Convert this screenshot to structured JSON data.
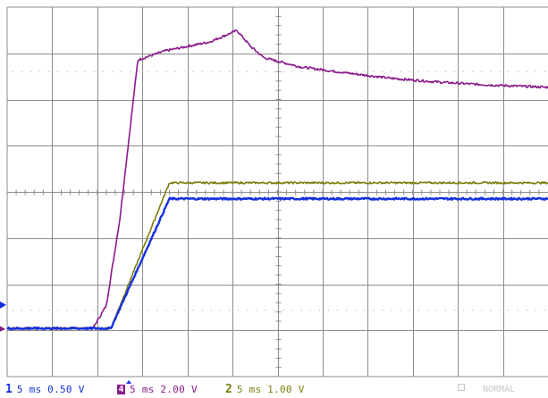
{
  "chart_data": {
    "type": "line",
    "title": "",
    "xlabel": "",
    "ylabel": "",
    "grid": true,
    "divisions": {
      "x": 12,
      "y": 8
    },
    "time_per_div_ms": 5,
    "xlim_ms": [
      -12.5,
      47.5
    ],
    "series": [
      {
        "channel": "1",
        "color": "#1530e0",
        "volts_per_div": 0.5,
        "marker_div": -2.85,
        "x_ms": [
          -12.5,
          -1.0,
          5.5,
          47.5
        ],
        "y_div": [
          0.0,
          0.0,
          2.85,
          2.85
        ]
      },
      {
        "channel": "2",
        "color": "#7c7c0c",
        "volts_per_div": 1.0,
        "marker_div": -2.85,
        "x_ms": [
          -12.5,
          -1.0,
          5.5,
          47.5
        ],
        "y_div": [
          0.0,
          0.0,
          3.2,
          3.2
        ]
      },
      {
        "channel": "4",
        "color": "#8a1a8a",
        "volts_per_div": 2.0,
        "marker_div": -3.08,
        "x_ms": [
          -12.5,
          -3.0,
          -1.5,
          0.0,
          2.0,
          5.0,
          10.0,
          13.0,
          14.5,
          16.0,
          20.0,
          25.0,
          30.0,
          35.0,
          40.0,
          47.5
        ],
        "y_div": [
          0.0,
          0.0,
          0.5,
          2.4,
          5.9,
          6.1,
          6.3,
          6.55,
          6.2,
          5.95,
          5.75,
          5.62,
          5.5,
          5.42,
          5.36,
          5.3
        ]
      }
    ],
    "trigger": {
      "time_ms": 0,
      "channel": "1"
    }
  },
  "readouts": [
    {
      "channel": "1",
      "timebase": "5 ms",
      "scale": "0.50 V",
      "color": "#1530e0"
    },
    {
      "channel": "4",
      "timebase": "5 ms",
      "scale": "2.00 V",
      "color": "#8a1a8a"
    },
    {
      "channel": "2",
      "timebase": "5 ms",
      "scale": "1.00 V",
      "color": "#7c7c0c"
    }
  ],
  "acquisition": {
    "mode": "NORMAL"
  }
}
